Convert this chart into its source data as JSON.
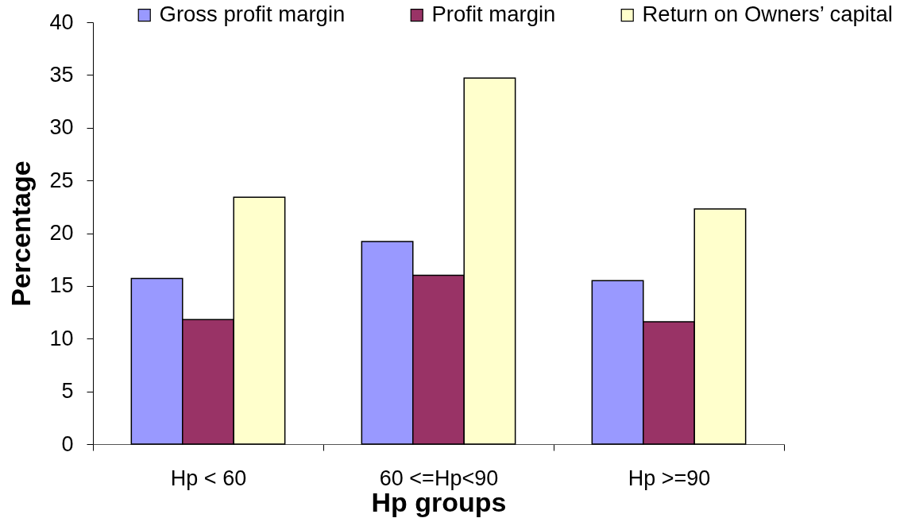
{
  "chart_data": {
    "type": "bar",
    "categories": [
      "Hp < 60",
      "60 <=Hp<90",
      "Hp >=90"
    ],
    "series": [
      {
        "name": "Gross profit margin",
        "color": "#9999ff",
        "values": [
          15.7,
          19.2,
          15.5
        ]
      },
      {
        "name": "Profit margin",
        "color": "#993366",
        "values": [
          11.8,
          16.0,
          11.6
        ]
      },
      {
        "name": "Return on Owners’ capital",
        "color": "#ffffcc",
        "values": [
          23.4,
          34.7,
          22.3
        ]
      }
    ],
    "xlabel": "Hp groups",
    "ylabel": "Percentage",
    "ylim": [
      0,
      40
    ],
    "yticks": [
      0,
      5,
      10,
      15,
      20,
      25,
      30,
      35,
      40
    ],
    "legend": "top"
  }
}
